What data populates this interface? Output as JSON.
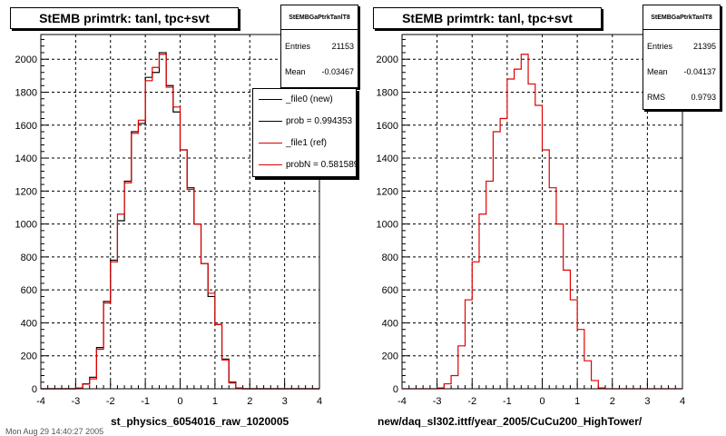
{
  "chart_data": [
    {
      "type": "histogram",
      "title": "StEMB primtrk: tanl, tpc+svt",
      "xlabel": "st_physics_6054016_raw_1020005",
      "xlim": [
        -4,
        4
      ],
      "ylim": [
        0,
        2150
      ],
      "x_ticks": [
        "-4",
        "-3",
        "-2",
        "-1",
        "0",
        "1",
        "2",
        "3",
        "4"
      ],
      "y_ticks": [
        "0",
        "200",
        "400",
        "600",
        "800",
        "1000",
        "1200",
        "1400",
        "1600",
        "1800",
        "2000"
      ],
      "grid": true,
      "bin_edges_start": -3.0,
      "bin_width": 0.2,
      "series": [
        {
          "name": "_file0 (new)",
          "color": "#000000",
          "values": [
            5,
            30,
            70,
            250,
            530,
            780,
            1020,
            1260,
            1560,
            1610,
            1890,
            1920,
            2040,
            1840,
            1680,
            1450,
            1220,
            1000,
            760,
            560,
            390,
            180,
            40,
            5
          ]
        },
        {
          "name": "_file1 (ref)",
          "color": "#e00000",
          "values": [
            5,
            28,
            60,
            240,
            520,
            770,
            1060,
            1250,
            1550,
            1630,
            1870,
            1950,
            2030,
            1830,
            1710,
            1450,
            1210,
            1000,
            760,
            580,
            390,
            175,
            35,
            5
          ]
        }
      ],
      "stats": {
        "name": "StEMBGaPtrkTanlT8",
        "rows": [
          {
            "label": "Entries",
            "value": "21153"
          },
          {
            "label": "Mean",
            "value": "-0.03467"
          }
        ]
      },
      "legend": [
        {
          "text": "_file0 (new)",
          "color": "#000000"
        },
        {
          "text": "prob = 0.994353",
          "color": "#000000"
        },
        {
          "text": "_file1 (ref)",
          "color": "#e00000"
        },
        {
          "text": "probN = 0.581589",
          "color": "#e00000"
        }
      ]
    },
    {
      "type": "histogram",
      "title": "StEMB primtrk: tanl, tpc+svt",
      "xlabel": "new/daq_sl302.ittf/year_2005/CuCu200_HighTower/",
      "xlim": [
        -4,
        4
      ],
      "ylim": [
        0,
        2150
      ],
      "x_ticks": [
        "-4",
        "-3",
        "-2",
        "-1",
        "0",
        "1",
        "2",
        "3",
        "4"
      ],
      "y_ticks": [
        "0",
        "200",
        "400",
        "600",
        "800",
        "1000",
        "1200",
        "1400",
        "1600",
        "1800",
        "2000"
      ],
      "grid": true,
      "bin_edges_start": -3.0,
      "bin_width": 0.2,
      "series": [
        {
          "color": "#e00000",
          "values": [
            5,
            30,
            80,
            260,
            540,
            770,
            1060,
            1260,
            1560,
            1640,
            1880,
            1940,
            2030,
            1850,
            1720,
            1450,
            1220,
            1000,
            720,
            540,
            360,
            170,
            50,
            5
          ]
        }
      ],
      "stats": {
        "name": "StEMBGaPtrkTanlT8",
        "rows": [
          {
            "label": "Entries",
            "value": "21395"
          },
          {
            "label": "Mean",
            "value": "-0.04137"
          },
          {
            "label": "RMS",
            "value": "0.9793"
          }
        ]
      },
      "legend": []
    }
  ],
  "footer": "Mon Aug 29 14:40:27 2005"
}
